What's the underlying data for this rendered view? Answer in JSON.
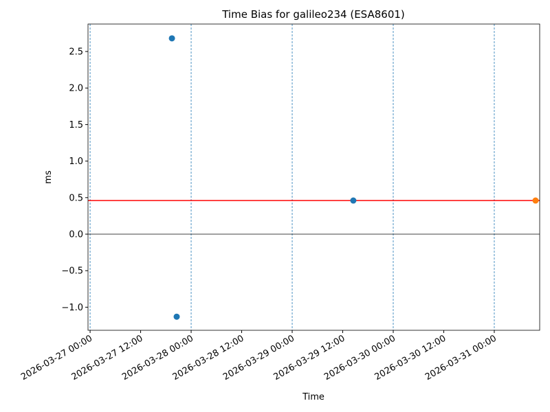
{
  "chart_data": {
    "type": "scatter",
    "title": "Time Bias for galileo234 (ESA8601)",
    "xlabel": "Time",
    "ylabel": "ms",
    "series": [
      {
        "color": "#1f77b4",
        "x": [
          "2026-03-27 19:26",
          "2026-03-27 20:34",
          "2026-03-29 14:31"
        ],
        "values": [
          2.68,
          -1.13,
          0.46
        ]
      },
      {
        "color": "#ff7f0e",
        "x": [
          "2026-03-31 09:48"
        ],
        "values": [
          0.46
        ]
      }
    ],
    "reference_lines": [
      {
        "value": 0.46,
        "color": "#ff0000"
      },
      {
        "value": 0,
        "color": "#000000"
      }
    ],
    "vlines": [
      "2026-03-27 00:00",
      "2026-03-28 00:00",
      "2026-03-29 00:00",
      "2026-03-30 00:00",
      "2026-03-31 00:00"
    ],
    "vline_color": "#1f77b4",
    "xlim": [
      "2026-03-26 23:30",
      "2026-03-31 10:47"
    ],
    "xticks": [
      "2026-03-27 00:00",
      "2026-03-27 12:00",
      "2026-03-28 00:00",
      "2026-03-28 12:00",
      "2026-03-29 00:00",
      "2026-03-29 12:00",
      "2026-03-30 00:00",
      "2026-03-30 12:00",
      "2026-03-31 00:00"
    ],
    "ylim": [
      -1.316,
      2.876
    ],
    "yticks": [
      {
        "value": -1,
        "label": "−1.0"
      },
      {
        "value": -0.5,
        "label": "−0.5"
      },
      {
        "value": 0,
        "label": "0.0"
      },
      0.5,
      {
        "value": 1,
        "label": "1.0"
      },
      1.5,
      {
        "value": 2,
        "label": "2.0"
      },
      2.5
    ]
  }
}
